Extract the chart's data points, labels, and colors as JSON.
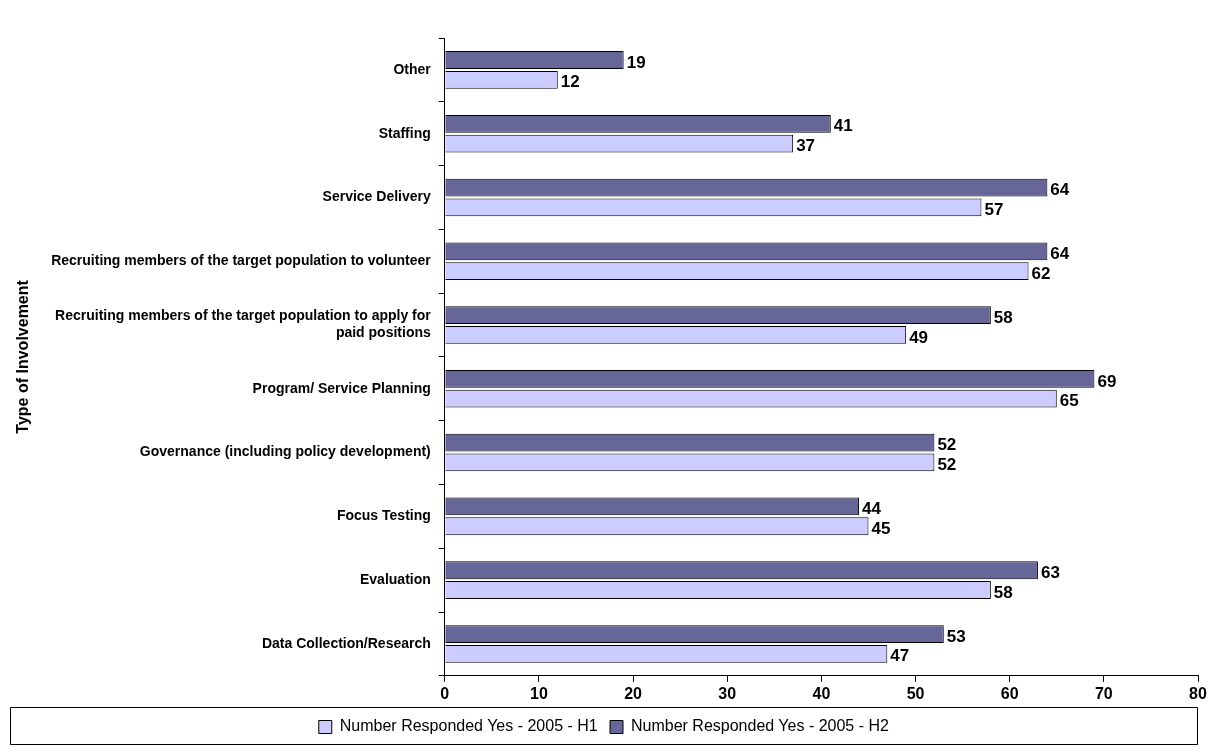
{
  "chart_data": {
    "type": "bar",
    "orientation": "horizontal",
    "ylabel": "Type of Involvement",
    "categories": [
      "Other",
      "Staffing",
      "Service Delivery",
      "Recruiting members of the target population to volunteer",
      "Recruiting members of the target population to apply for paid positions",
      "Program/ Service Planning",
      "Governance (including policy development)",
      "Focus Testing",
      "Evaluation",
      "Data Collection/Research"
    ],
    "series": [
      {
        "name": "Number Responded Yes - 2005 - H1",
        "color": "#ccccff",
        "values": [
          12,
          37,
          57,
          62,
          49,
          65,
          52,
          45,
          58,
          47
        ]
      },
      {
        "name": "Number Responded Yes - 2005 - H2",
        "color": "#666699",
        "values": [
          19,
          41,
          64,
          64,
          58,
          69,
          52,
          44,
          63,
          53
        ]
      }
    ],
    "xlim": [
      0,
      80
    ],
    "xticks": [
      0,
      10,
      20,
      30,
      40,
      50,
      60,
      70,
      80
    ],
    "grid": false,
    "legend": "bottom",
    "data_labels": true
  }
}
